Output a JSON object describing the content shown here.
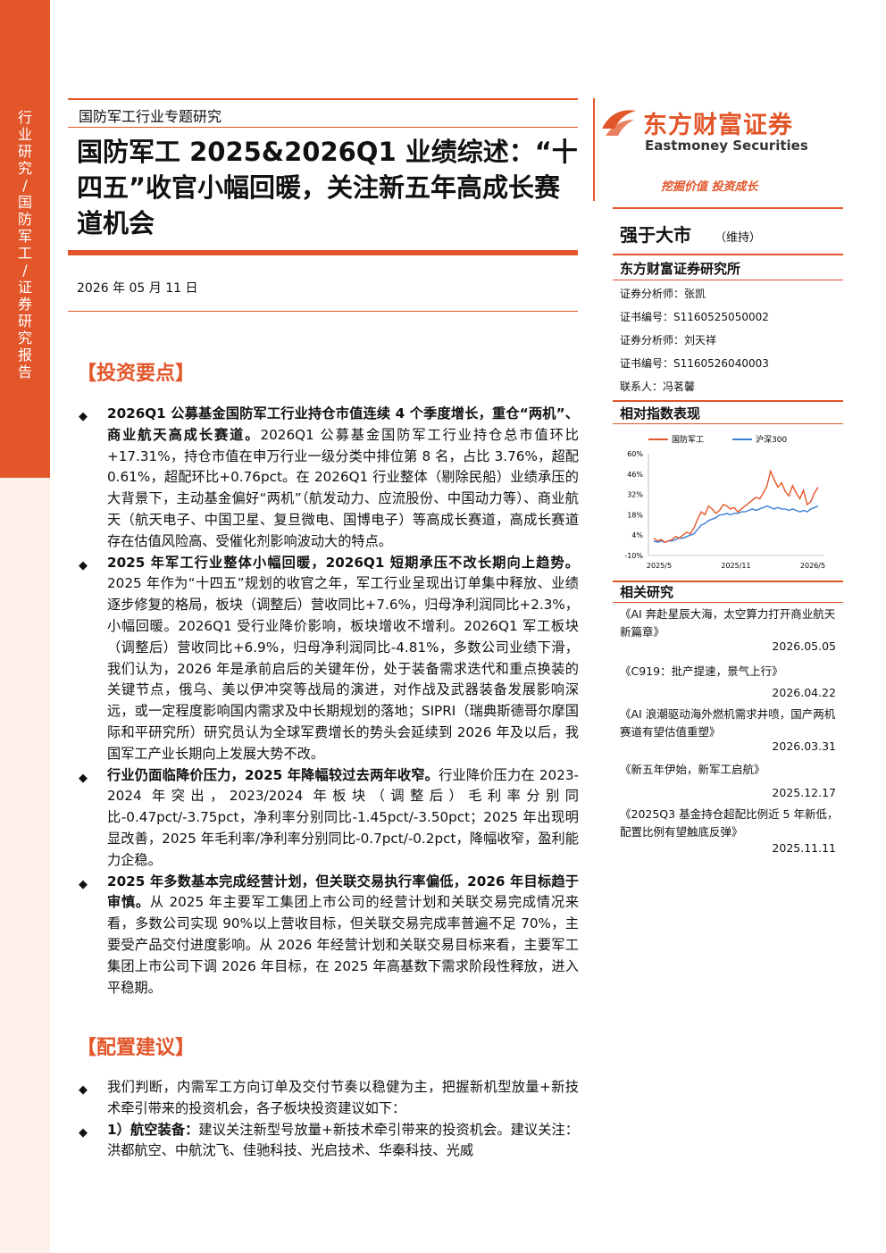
{
  "sidebar": {
    "label": "行业研究 / 国防军工 / 证券研究报告"
  },
  "header": {
    "series": "国防军工行业专题研究",
    "title": "国防军工 2025&2026Q1 业绩综述：“十四五”收官小幅回暖，关注新五年高成长赛道机会",
    "date": "2026 年 05 月 11 日"
  },
  "brand": {
    "name_cn": "东方财富证券",
    "name_en": "Eastmoney Securities",
    "slogan": "挖掘价值 投资成长",
    "accent_color": "#e2562a"
  },
  "rating": {
    "value": "强于大市",
    "note": "（维持）"
  },
  "institute": "东方财富证券研究所",
  "analysts": [
    "证券分析师：张凯",
    "证书编号：S1160525050002",
    "证券分析师：刘天祥",
    "证书编号：S1160526040003",
    "联系人：冯茗馨"
  ],
  "chart_heading": "相对指数表现",
  "chart_data": {
    "type": "line",
    "series": [
      {
        "name": "国防军工",
        "color": "#e2562a",
        "values": [
          2,
          0,
          1,
          -1,
          0,
          1,
          3,
          2,
          4,
          6,
          5,
          9,
          15,
          20,
          18,
          24,
          22,
          19,
          21,
          25,
          24,
          22,
          23,
          20,
          22,
          24,
          26,
          28,
          30,
          29,
          33,
          38,
          48,
          42,
          37,
          40,
          34,
          31,
          38,
          33,
          29,
          35,
          25,
          27,
          33,
          37
        ]
      },
      {
        "name": "沪深300",
        "color": "#3b7fd4",
        "values": [
          0,
          -1,
          0,
          -1,
          0,
          0,
          1,
          2,
          2,
          3,
          4,
          5,
          8,
          11,
          12,
          14,
          15,
          16,
          18,
          18,
          19,
          18,
          19,
          19,
          20,
          20,
          21,
          22,
          21,
          22,
          23,
          24,
          23,
          22,
          23,
          22,
          22,
          21,
          22,
          21,
          20,
          21,
          20,
          22,
          23,
          24
        ]
      }
    ],
    "yticks": [
      "60%",
      "46%",
      "32%",
      "18%",
      "4%",
      "-10%"
    ],
    "ylim": [
      -10,
      60
    ],
    "xticks": [
      "2025/5",
      "2025/11",
      "2026/5"
    ]
  },
  "related": {
    "heading": "相关研究",
    "items": [
      {
        "title": "《AI 奔赴星辰大海，太空算力打开商业航天新篇章》",
        "date": "2026.05.05"
      },
      {
        "title": "《C919：批产提速，景气上行》",
        "date": "2026.04.22"
      },
      {
        "title": "《AI 浪潮驱动海外燃机需求井喷，国产两机赛道有望估值重塑》",
        "date": "2026.03.31"
      },
      {
        "title": "《新五年伊始，新军工启航》",
        "date": "2025.12.17"
      },
      {
        "title": "《2025Q3 基金持仓超配比例近 5 年新低，配置比例有望触底反弹》",
        "date": "2025.11.11"
      }
    ]
  },
  "sections": {
    "invest_heading": "【投资要点】",
    "config_heading": "【配置建议】"
  },
  "points": [
    {
      "bold": "2026Q1 公募基金国防军工行业持仓市值连续 4 个季度增长，重仓“两机”、商业航天高成长赛道。",
      "text": "2026Q1 公募基金国防军工行业持仓总市值环比+17.31%，持仓市值在申万行业一级分类中排位第 8 名，占比 3.76%，超配 0.61%，超配环比+0.76pct。在 2026Q1 行业整体（剔除民船）业绩承压的大背景下，主动基金偏好“两机”（航发动力、应流股份、中国动力等）、商业航天（航天电子、中国卫星、复旦微电、国博电子）等高成长赛道，高成长赛道存在估值风险高、受催化剂影响波动大的特点。"
    },
    {
      "bold": "2025 年军工行业整体小幅回暖，2026Q1 短期承压不改长期向上趋势。",
      "text": "2025 年作为“十四五”规划的收官之年，军工行业呈现出订单集中释放、业绩逐步修复的格局，板块（调整后）营收同比+7.6%，归母净利润同比+2.3%，小幅回暖。2026Q1 受行业降价影响，板块增收不增利。2026Q1 军工板块（调整后）营收同比+6.9%，归母净利润同比-4.81%，多数公司业绩下滑，我们认为，2026 年是承前启后的关键年份，处于装备需求迭代和重点换装的关键节点，俄乌、美以伊冲突等战局的演进，对作战及武器装备发展影响深远，或一定程度影响国内需求及中长期规划的落地；SIPRI（瑞典斯德哥尔摩国际和平研究所）研究员认为全球军费增长的势头会延续到 2026 年及以后，我国军工产业长期向上发展大势不改。"
    },
    {
      "bold": "行业仍面临降价压力，2025 年降幅较过去两年收窄。",
      "text": "行业降价压力在 2023-2024 年突出，2023/2024 年板块（调整后）毛利率分别同比-0.47pct/-3.75pct，净利率分别同比-1.45pct/-3.50pct；2025 年出现明显改善，2025 年毛利率/净利率分别同比-0.7pct/-0.2pct，降幅收窄，盈利能力企稳。"
    },
    {
      "bold": "2025 年多数基本完成经营计划，但关联交易执行率偏低，2026 年目标趋于审慎。",
      "text": "从 2025 年主要军工集团上市公司的经营计划和关联交易完成情况来看，多数公司实现 90%以上营收目标，但关联交易完成率普遍不足 70%，主要受产品交付进度影响。从 2026 年经营计划和关联交易目标来看，主要军工集团上市公司下调 2026 年目标，在 2025 年高基数下需求阶段性释放，进入平稳期。"
    }
  ],
  "config": [
    {
      "bold": "",
      "text": "我们判断，内需军工方向订单及交付节奏以稳健为主，把握新机型放量+新技术牵引带来的投资机会，各子板块投资建议如下："
    },
    {
      "bold": "1）航空装备：",
      "text": "建议关注新型号放量+新技术牵引带来的投资机会。建议关注：洪都航空、中航沈飞、佳驰科技、光启技术、华秦科技、光威"
    }
  ]
}
